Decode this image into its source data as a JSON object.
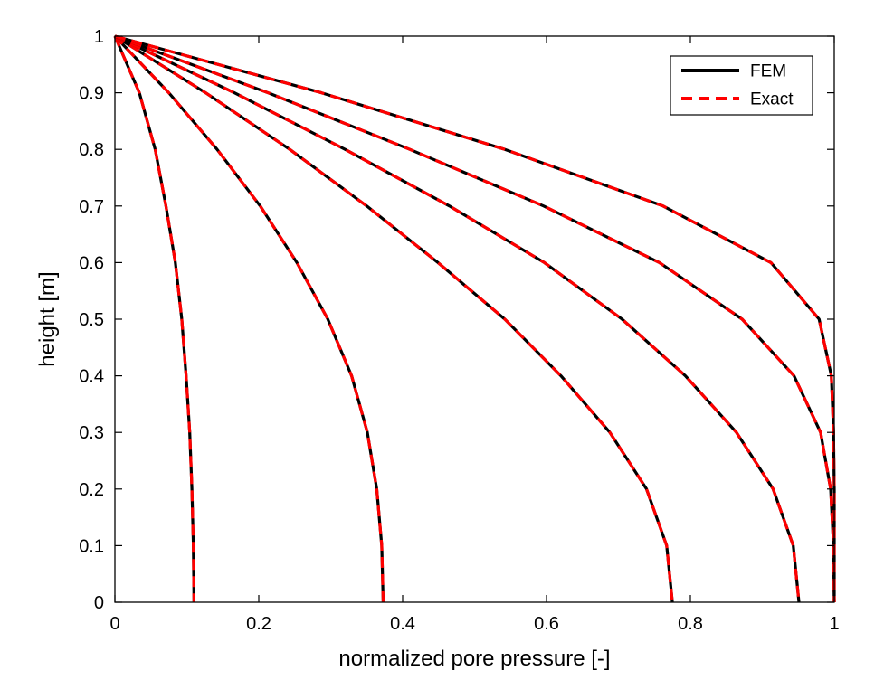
{
  "chart_data": {
    "type": "line",
    "title": "",
    "xlabel": "normalized pore pressure [-]",
    "ylabel": "height [m]",
    "xlim": [
      0,
      1
    ],
    "ylim": [
      0,
      1
    ],
    "x_ticks": [
      "0",
      "0.2",
      "0.4",
      "0.6",
      "0.8",
      "1"
    ],
    "y_ticks": [
      "0",
      "0.1",
      "0.2",
      "0.3",
      "0.4",
      "0.5",
      "0.6",
      "0.7",
      "0.8",
      "0.9",
      "1"
    ],
    "grid": false,
    "legend_position": "top-right",
    "legend": [
      {
        "label": "FEM",
        "color": "#000000",
        "style": "solid"
      },
      {
        "label": "Exact",
        "color": "#ff0000",
        "style": "dashed"
      }
    ],
    "curves": [
      {
        "points": [
          [
            0.0,
            1.0
          ],
          [
            0.034,
            0.9
          ],
          [
            0.056,
            0.8
          ],
          [
            0.071,
            0.7
          ],
          [
            0.084,
            0.6
          ],
          [
            0.093,
            0.5
          ],
          [
            0.099,
            0.4
          ],
          [
            0.104,
            0.3
          ],
          [
            0.107,
            0.2
          ],
          [
            0.109,
            0.1
          ],
          [
            0.11,
            0.0
          ]
        ]
      },
      {
        "points": [
          [
            0.0,
            1.0
          ],
          [
            0.075,
            0.9
          ],
          [
            0.142,
            0.8
          ],
          [
            0.202,
            0.7
          ],
          [
            0.253,
            0.6
          ],
          [
            0.296,
            0.5
          ],
          [
            0.329,
            0.4
          ],
          [
            0.351,
            0.3
          ],
          [
            0.364,
            0.2
          ],
          [
            0.371,
            0.1
          ],
          [
            0.373,
            0.0
          ]
        ]
      },
      {
        "points": [
          [
            0.0,
            1.0
          ],
          [
            0.126,
            0.9
          ],
          [
            0.243,
            0.8
          ],
          [
            0.35,
            0.7
          ],
          [
            0.449,
            0.6
          ],
          [
            0.542,
            0.5
          ],
          [
            0.62,
            0.4
          ],
          [
            0.688,
            0.3
          ],
          [
            0.739,
            0.2
          ],
          [
            0.767,
            0.1
          ],
          [
            0.775,
            0.0
          ]
        ]
      },
      {
        "points": [
          [
            0.0,
            1.0
          ],
          [
            0.166,
            0.9
          ],
          [
            0.32,
            0.8
          ],
          [
            0.465,
            0.7
          ],
          [
            0.597,
            0.6
          ],
          [
            0.705,
            0.5
          ],
          [
            0.793,
            0.4
          ],
          [
            0.864,
            0.3
          ],
          [
            0.915,
            0.2
          ],
          [
            0.943,
            0.1
          ],
          [
            0.951,
            0.0
          ]
        ]
      },
      {
        "points": [
          [
            0.0,
            1.0
          ],
          [
            0.213,
            0.9
          ],
          [
            0.41,
            0.8
          ],
          [
            0.596,
            0.7
          ],
          [
            0.757,
            0.6
          ],
          [
            0.872,
            0.5
          ],
          [
            0.944,
            0.4
          ],
          [
            0.981,
            0.3
          ],
          [
            0.995,
            0.2
          ],
          [
            0.999,
            0.1
          ],
          [
            1.0,
            0.0
          ]
        ]
      },
      {
        "points": [
          [
            0.0,
            1.0
          ],
          [
            0.287,
            0.9
          ],
          [
            0.542,
            0.8
          ],
          [
            0.762,
            0.7
          ],
          [
            0.912,
            0.6
          ],
          [
            0.979,
            0.5
          ],
          [
            0.996,
            0.4
          ],
          [
            0.999,
            0.3
          ],
          [
            1.0,
            0.2
          ],
          [
            1.0,
            0.1
          ],
          [
            1.0,
            0.0
          ]
        ]
      }
    ]
  }
}
